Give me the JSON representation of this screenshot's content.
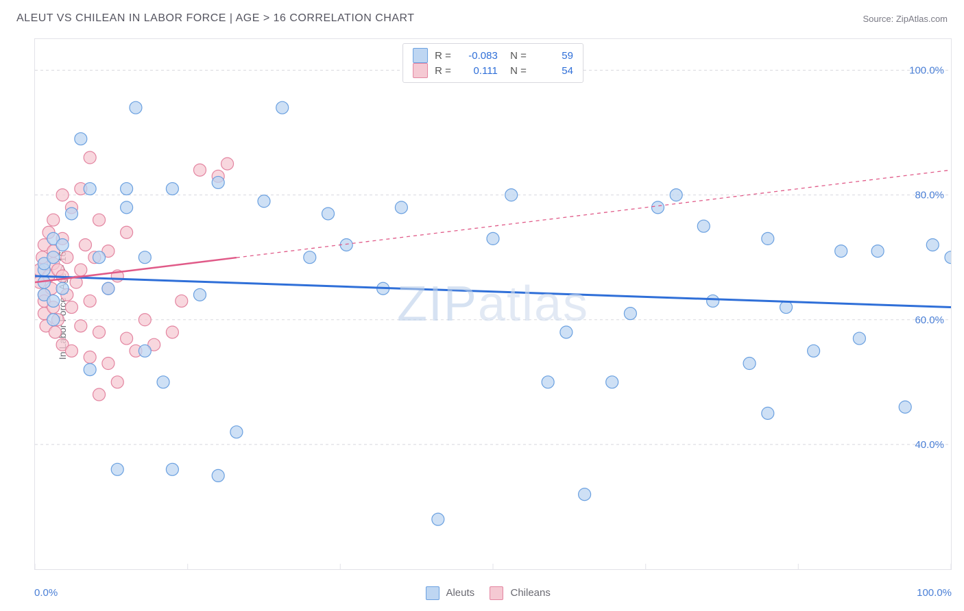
{
  "header": {
    "title": "ALEUT VS CHILEAN IN LABOR FORCE | AGE > 16 CORRELATION CHART",
    "source": "Source: ZipAtlas.com"
  },
  "chart": {
    "type": "scatter",
    "ylabel": "In Labor Force | Age > 16",
    "watermark": "ZIPatlas",
    "background_color": "#ffffff",
    "border_color": "#e2e2e8",
    "grid_color": "#d8d8de",
    "grid_dash": "4,4",
    "xlim": [
      0,
      100
    ],
    "ylim": [
      20,
      105
    ],
    "y_gridlines": [
      40,
      60,
      80,
      100
    ],
    "y_tick_labels": [
      "40.0%",
      "60.0%",
      "80.0%",
      "100.0%"
    ],
    "y_tick_color": "#4a7fd6",
    "x_axis_labels": {
      "left": "0.0%",
      "right": "100.0%"
    },
    "x_ticks": [
      0,
      16.67,
      33.33,
      50,
      66.67,
      83.33,
      100
    ],
    "marker_radius": 9,
    "marker_stroke_width": 1.2,
    "series": [
      {
        "name": "Aleuts",
        "color_fill": "#bed6f2",
        "color_stroke": "#6aa0e0",
        "trend": {
          "color": "#2f6fd8",
          "width": 3,
          "y_at_x0": 67,
          "y_at_x100": 62,
          "solid_until_x": 100
        },
        "legend": {
          "R": "-0.083",
          "N": "59"
        },
        "points": [
          [
            1,
            66
          ],
          [
            1,
            68
          ],
          [
            1,
            69
          ],
          [
            1,
            64
          ],
          [
            2,
            63
          ],
          [
            2,
            70
          ],
          [
            2,
            60
          ],
          [
            2,
            73
          ],
          [
            3,
            72
          ],
          [
            3,
            65
          ],
          [
            4,
            77
          ],
          [
            5,
            89
          ],
          [
            6,
            81
          ],
          [
            6,
            52
          ],
          [
            7,
            70
          ],
          [
            8,
            65
          ],
          [
            9,
            36
          ],
          [
            10,
            81
          ],
          [
            10,
            78
          ],
          [
            11,
            94
          ],
          [
            12,
            70
          ],
          [
            12,
            55
          ],
          [
            14,
            50
          ],
          [
            15,
            36
          ],
          [
            15,
            81
          ],
          [
            18,
            64
          ],
          [
            20,
            82
          ],
          [
            20,
            35
          ],
          [
            22,
            42
          ],
          [
            25,
            79
          ],
          [
            27,
            94
          ],
          [
            30,
            70
          ],
          [
            32,
            77
          ],
          [
            34,
            72
          ],
          [
            38,
            65
          ],
          [
            40,
            78
          ],
          [
            44,
            28
          ],
          [
            50,
            73
          ],
          [
            52,
            80
          ],
          [
            56,
            50
          ],
          [
            58,
            58
          ],
          [
            60,
            32
          ],
          [
            63,
            50
          ],
          [
            65,
            61
          ],
          [
            68,
            78
          ],
          [
            70,
            80
          ],
          [
            73,
            75
          ],
          [
            74,
            63
          ],
          [
            78,
            53
          ],
          [
            80,
            73
          ],
          [
            80,
            45
          ],
          [
            82,
            62
          ],
          [
            85,
            55
          ],
          [
            88,
            71
          ],
          [
            90,
            57
          ],
          [
            92,
            71
          ],
          [
            95,
            46
          ],
          [
            98,
            72
          ],
          [
            100,
            70
          ]
        ]
      },
      {
        "name": "Chileans",
        "color_fill": "#f5c9d3",
        "color_stroke": "#e384a0",
        "trend": {
          "color": "#e05a88",
          "width": 2.5,
          "y_at_x0": 66,
          "y_at_x100": 84,
          "solid_until_x": 22
        },
        "legend": {
          "R": "0.111",
          "N": "54"
        },
        "points": [
          [
            0.5,
            66
          ],
          [
            0.5,
            68
          ],
          [
            0.8,
            70
          ],
          [
            1,
            64
          ],
          [
            1,
            63
          ],
          [
            1,
            72
          ],
          [
            1,
            61
          ],
          [
            1.2,
            59
          ],
          [
            1.5,
            67
          ],
          [
            1.5,
            74
          ],
          [
            1.8,
            65
          ],
          [
            2,
            69
          ],
          [
            2,
            62
          ],
          [
            2,
            71
          ],
          [
            2,
            76
          ],
          [
            2.2,
            58
          ],
          [
            2.5,
            60
          ],
          [
            2.5,
            68
          ],
          [
            3,
            67
          ],
          [
            3,
            73
          ],
          [
            3,
            80
          ],
          [
            3,
            56
          ],
          [
            3.5,
            64
          ],
          [
            3.5,
            70
          ],
          [
            4,
            62
          ],
          [
            4,
            55
          ],
          [
            4,
            78
          ],
          [
            4.5,
            66
          ],
          [
            5,
            81
          ],
          [
            5,
            59
          ],
          [
            5,
            68
          ],
          [
            5.5,
            72
          ],
          [
            6,
            86
          ],
          [
            6,
            63
          ],
          [
            6,
            54
          ],
          [
            6.5,
            70
          ],
          [
            7,
            58
          ],
          [
            7,
            48
          ],
          [
            7,
            76
          ],
          [
            8,
            65
          ],
          [
            8,
            53
          ],
          [
            8,
            71
          ],
          [
            9,
            50
          ],
          [
            9,
            67
          ],
          [
            10,
            57
          ],
          [
            10,
            74
          ],
          [
            11,
            55
          ],
          [
            12,
            60
          ],
          [
            13,
            56
          ],
          [
            15,
            58
          ],
          [
            16,
            63
          ],
          [
            18,
            84
          ],
          [
            20,
            83
          ],
          [
            21,
            85
          ]
        ]
      }
    ],
    "footer_legend": [
      {
        "label": "Aleuts",
        "fill": "#bed6f2",
        "stroke": "#6aa0e0"
      },
      {
        "label": "Chileans",
        "fill": "#f5c9d3",
        "stroke": "#e384a0"
      }
    ]
  }
}
